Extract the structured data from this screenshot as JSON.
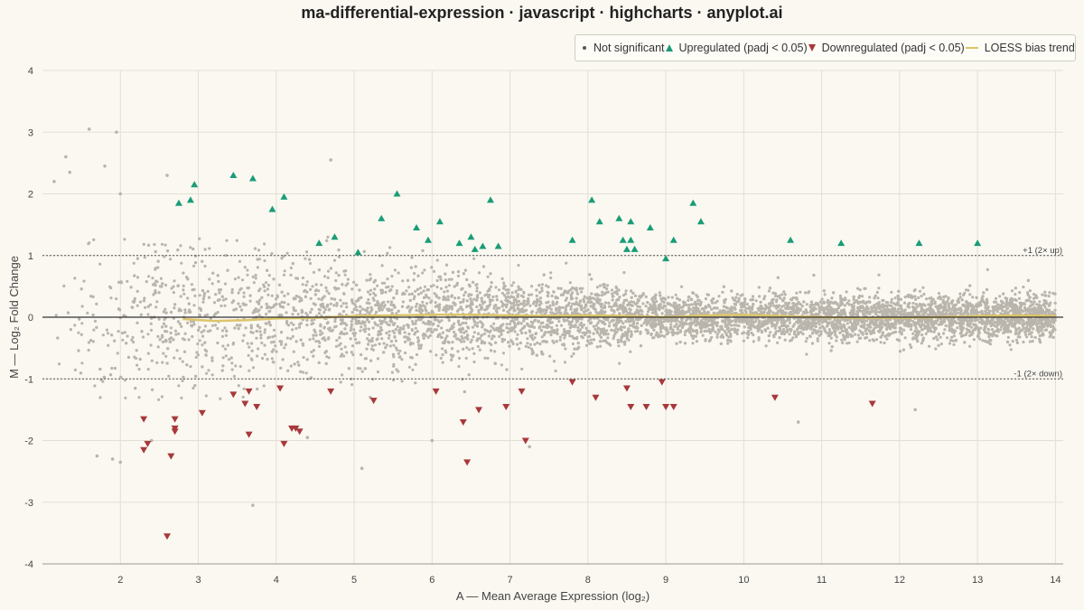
{
  "chart_data": {
    "type": "scatter",
    "title": "ma-differential-expression · javascript · highcharts · anyplot.ai",
    "xlabel": "A — Mean Average Expression (log₂)",
    "ylabel": "M — Log₂ Fold Change",
    "xlim": [
      1.0,
      14.1
    ],
    "ylim": [
      -4,
      4
    ],
    "xticks": [
      2,
      3,
      4,
      5,
      6,
      7,
      8,
      9,
      10,
      11,
      12,
      13,
      14
    ],
    "yticks": [
      4,
      3,
      2,
      1,
      0,
      -1,
      -2,
      -3,
      -4
    ],
    "grid": true,
    "legend_position": "top-right",
    "colors": {
      "not_significant": "#b9b5ad",
      "upregulated": "#1a9c78",
      "downregulated": "#a8383a",
      "loess": "#dcc56a",
      "zero_line": "#333333",
      "ref_line": "#555555"
    },
    "reference_lines": [
      {
        "y": 1,
        "label": "+1 (2× up)"
      },
      {
        "y": -1,
        "label": "-1 (2× down)"
      }
    ],
    "series": [
      {
        "name": "Not significant",
        "marker": "circle",
        "description_points": "approximately 8000 genes, A spread 1.1–14.0, M roughly within ±1.3 (wider at low A); representative outliers listed",
        "points": [
          [
            1.15,
            2.2
          ],
          [
            1.3,
            2.6
          ],
          [
            1.35,
            2.35
          ],
          [
            1.6,
            3.05
          ],
          [
            1.8,
            2.45
          ],
          [
            1.95,
            3.0
          ],
          [
            2.0,
            2.0
          ],
          [
            4.7,
            2.55
          ],
          [
            2.6,
            2.3
          ],
          [
            1.7,
            -2.25
          ],
          [
            1.9,
            -2.3
          ],
          [
            2.0,
            -2.35
          ],
          [
            2.4,
            -2.0
          ],
          [
            3.7,
            -3.05
          ],
          [
            4.4,
            -1.95
          ],
          [
            5.1,
            -2.45
          ],
          [
            6.0,
            -2.0
          ],
          [
            7.25,
            -2.1
          ],
          [
            10.7,
            -1.7
          ],
          [
            12.2,
            -1.5
          ]
        ]
      },
      {
        "name": "Upregulated (padj < 0.05)",
        "marker": "triangle",
        "points": [
          [
            2.75,
            1.85
          ],
          [
            2.9,
            1.9
          ],
          [
            2.95,
            2.15
          ],
          [
            3.45,
            2.3
          ],
          [
            3.7,
            2.25
          ],
          [
            3.95,
            1.75
          ],
          [
            4.1,
            1.95
          ],
          [
            4.55,
            1.2
          ],
          [
            4.75,
            1.3
          ],
          [
            5.05,
            1.05
          ],
          [
            5.35,
            1.6
          ],
          [
            5.55,
            2.0
          ],
          [
            5.8,
            1.45
          ],
          [
            5.95,
            1.25
          ],
          [
            6.1,
            1.55
          ],
          [
            6.35,
            1.2
          ],
          [
            6.5,
            1.3
          ],
          [
            6.55,
            1.1
          ],
          [
            6.65,
            1.15
          ],
          [
            6.75,
            1.9
          ],
          [
            6.85,
            1.15
          ],
          [
            7.8,
            1.25
          ],
          [
            8.05,
            1.9
          ],
          [
            8.15,
            1.55
          ],
          [
            8.4,
            1.6
          ],
          [
            8.45,
            1.25
          ],
          [
            8.5,
            1.1
          ],
          [
            8.55,
            1.55
          ],
          [
            8.55,
            1.25
          ],
          [
            8.6,
            1.1
          ],
          [
            8.8,
            1.45
          ],
          [
            9.0,
            0.95
          ],
          [
            9.1,
            1.25
          ],
          [
            9.35,
            1.85
          ],
          [
            9.45,
            1.55
          ],
          [
            10.6,
            1.25
          ],
          [
            11.25,
            1.2
          ],
          [
            12.25,
            1.2
          ],
          [
            13.0,
            1.2
          ]
        ]
      },
      {
        "name": "Downregulated (padj < 0.05)",
        "marker": "triangle-down",
        "points": [
          [
            2.3,
            -1.65
          ],
          [
            2.3,
            -2.15
          ],
          [
            2.35,
            -2.05
          ],
          [
            2.6,
            -3.55
          ],
          [
            2.65,
            -2.25
          ],
          [
            2.7,
            -1.85
          ],
          [
            2.7,
            -1.8
          ],
          [
            2.7,
            -1.65
          ],
          [
            3.05,
            -1.55
          ],
          [
            3.45,
            -1.25
          ],
          [
            3.6,
            -1.4
          ],
          [
            3.65,
            -1.2
          ],
          [
            3.65,
            -1.9
          ],
          [
            3.75,
            -1.45
          ],
          [
            4.05,
            -1.15
          ],
          [
            4.1,
            -2.05
          ],
          [
            4.2,
            -1.8
          ],
          [
            4.25,
            -1.8
          ],
          [
            4.3,
            -1.85
          ],
          [
            4.7,
            -1.2
          ],
          [
            5.25,
            -1.35
          ],
          [
            6.05,
            -1.2
          ],
          [
            6.4,
            -1.7
          ],
          [
            6.45,
            -2.35
          ],
          [
            6.6,
            -1.5
          ],
          [
            6.95,
            -1.45
          ],
          [
            7.15,
            -1.2
          ],
          [
            7.2,
            -2.0
          ],
          [
            7.8,
            -1.05
          ],
          [
            8.1,
            -1.3
          ],
          [
            8.5,
            -1.15
          ],
          [
            8.55,
            -1.45
          ],
          [
            8.75,
            -1.45
          ],
          [
            8.95,
            -1.05
          ],
          [
            9.0,
            -1.45
          ],
          [
            9.1,
            -1.45
          ],
          [
            10.4,
            -1.3
          ],
          [
            11.65,
            -1.4
          ]
        ]
      },
      {
        "name": "LOESS bias trend",
        "marker": "line",
        "points": [
          [
            2.8,
            -0.03
          ],
          [
            3.2,
            -0.06
          ],
          [
            3.6,
            -0.05
          ],
          [
            4.0,
            -0.02
          ],
          [
            4.5,
            -0.01
          ],
          [
            5.0,
            0.02
          ],
          [
            5.5,
            0.03
          ],
          [
            6.0,
            0.04
          ],
          [
            6.5,
            0.04
          ],
          [
            7.0,
            0.03
          ],
          [
            7.5,
            0.02
          ],
          [
            8.0,
            0.03
          ],
          [
            8.5,
            0.02
          ],
          [
            9.0,
            0.0
          ],
          [
            9.5,
            0.03
          ],
          [
            10.0,
            0.04
          ],
          [
            10.5,
            0.02
          ],
          [
            11.0,
            0.0
          ],
          [
            11.5,
            -0.01
          ],
          [
            12.0,
            -0.01
          ],
          [
            12.5,
            0.0
          ],
          [
            13.0,
            0.02
          ],
          [
            13.5,
            0.03
          ],
          [
            14.0,
            0.02
          ]
        ]
      }
    ]
  },
  "legend": {
    "items": [
      {
        "label": "Not significant"
      },
      {
        "label": "Upregulated (padj < 0.05)"
      },
      {
        "label": "Downregulated (padj < 0.05)"
      },
      {
        "label": "LOESS bias trend"
      }
    ]
  }
}
